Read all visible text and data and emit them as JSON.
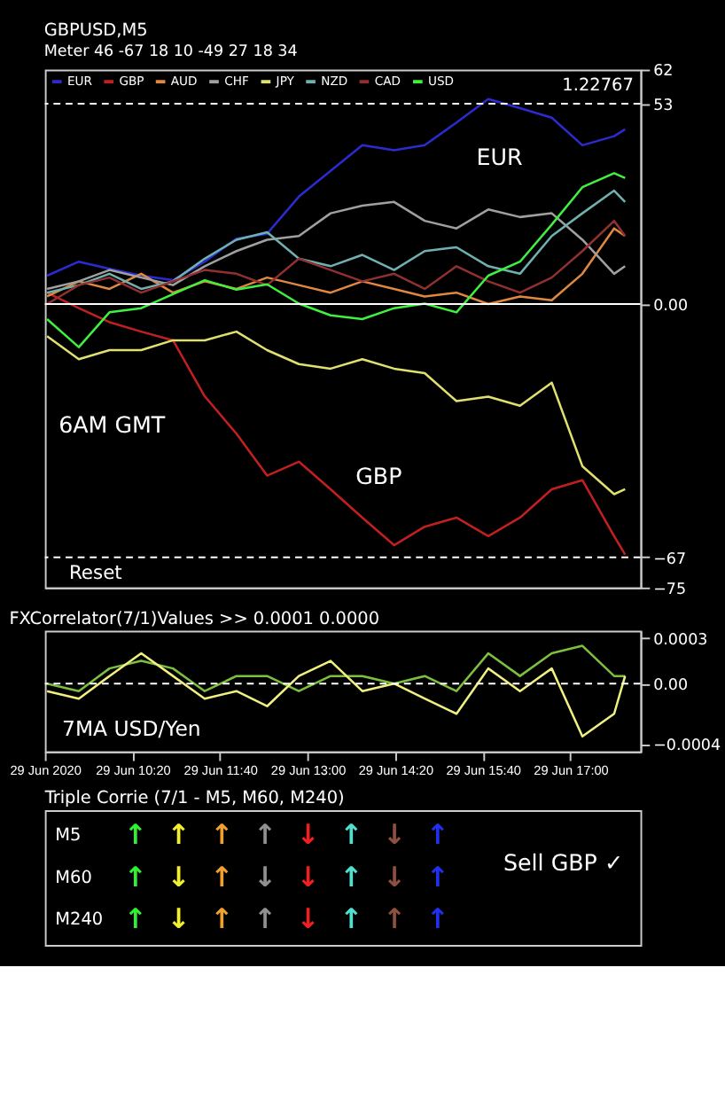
{
  "chart_data": [
    {
      "type": "line",
      "title": "GBPUSD,M5",
      "subtitle": "Meter 46 -67 18 10 -49 27 18 34",
      "legend": "top left",
      "tick_labels": "y",
      "marker": "none",
      "x": [
        "2020-06-29T09:02",
        "2020-06-29T09:31",
        "2020-06-29T09:59",
        "2020-06-29T10:28",
        "2020-06-29T10:57",
        "2020-06-29T11:26",
        "2020-06-29T11:55",
        "2020-06-29T12:23",
        "2020-06-29T12:52",
        "2020-06-29T13:21",
        "2020-06-29T13:50",
        "2020-06-29T14:19",
        "2020-06-29T14:47",
        "2020-06-29T15:16",
        "2020-06-29T15:45",
        "2020-06-29T16:14",
        "2020-06-29T16:43",
        "2020-06-29T17:11",
        "2020-06-29T17:40",
        "2020-06-29T17:50"
      ],
      "xlim": [
        "2020-06-29T09:00",
        "2020-06-29T18:04"
      ],
      "ylim": [
        -75,
        62
      ],
      "yticks": [
        62,
        53,
        {
          "value": 0,
          "label": "0.00"
        },
        -67,
        -75
      ],
      "series": [
        {
          "name": "EUR",
          "color": "#2b2bd0",
          "values": [
            7.5,
            11.2,
            9.3,
            7.5,
            6.3,
            11.2,
            17.3,
            18.6,
            28.4,
            35.2,
            42,
            40.7,
            42,
            48,
            54.2,
            51.8,
            49.3,
            42,
            44.4,
            46.2
          ]
        },
        {
          "name": "GBP",
          "color": "#c02020",
          "values": [
            3,
            -1.1,
            -4.8,
            -7.3,
            -9.6,
            -24.4,
            -34.3,
            -45.4,
            -41.7,
            -49,
            -56.5,
            -63.8,
            -58.9,
            -56.5,
            -61.4,
            -56.5,
            -49,
            -46.6,
            -61.4,
            -66.3
          ]
        },
        {
          "name": "AUD",
          "color": "#e08840",
          "values": [
            2,
            6,
            4,
            8,
            3,
            6,
            4,
            7,
            5,
            3,
            6,
            4,
            2,
            3,
            0,
            2,
            1,
            8,
            20,
            18
          ]
        },
        {
          "name": "CHF",
          "color": "#a0a0a0",
          "values": [
            4,
            6,
            9,
            7,
            5,
            10,
            14,
            17,
            18,
            24,
            26,
            27,
            22,
            20,
            25,
            23,
            24,
            17,
            8,
            10
          ]
        },
        {
          "name": "JPY",
          "color": "#e0e070",
          "values": [
            -8.5,
            -14.6,
            -12.2,
            -12.2,
            -9.6,
            -9.6,
            -7.3,
            -12.2,
            -15.9,
            -17.1,
            -14.6,
            -17.1,
            -18.3,
            -25.7,
            -24.5,
            -26.9,
            -20.8,
            -42.9,
            -50.3,
            -49
          ]
        },
        {
          "name": "NZD",
          "color": "#70b0b0",
          "values": [
            3,
            5,
            8,
            4,
            6,
            12,
            17,
            19,
            12,
            10,
            13,
            9,
            14,
            15,
            10,
            8,
            18,
            24,
            30,
            27
          ]
        },
        {
          "name": "CAD",
          "color": "#903030",
          "values": [
            0,
            5,
            7,
            3,
            6,
            9,
            8,
            5,
            12,
            9,
            6,
            8,
            4,
            10,
            6,
            3,
            7,
            14,
            22,
            18
          ]
        },
        {
          "name": "USD",
          "color": "#40f040",
          "values": [
            -4,
            -11.4,
            -2.2,
            -1.1,
            2.6,
            6.3,
            3.8,
            5.2,
            0.1,
            -3,
            -4,
            -1.1,
            0.1,
            -2.2,
            7.5,
            11.2,
            21,
            30.9,
            34.6,
            33.3
          ]
        }
      ],
      "ref_lines": [
        {
          "axis": "y",
          "value": 53,
          "color": "#ffffff",
          "line_style": "dashed"
        },
        {
          "axis": "y",
          "value": 0,
          "color": "#ffffff",
          "line_style": "solid"
        },
        {
          "axis": "y",
          "value": -67,
          "color": "#ffffff",
          "line_style": "dashed"
        }
      ],
      "annotations": [
        "EUR",
        "GBP",
        "6AM GMT",
        "Reset",
        "1.22767"
      ]
    },
    {
      "type": "line",
      "title": "FXCorrelator(7/1)Values >> 0.0001 0.0000",
      "marker": "none",
      "xticks": [
        {
          "value": "2020-06-29T09:00",
          "label": "29 Jun 2020"
        },
        {
          "value": "2020-06-29T10:20",
          "label": "29 Jun 10:20"
        },
        {
          "value": "2020-06-29T11:40",
          "label": "29 Jun 11:40"
        },
        {
          "value": "2020-06-29T13:00",
          "label": "29 Jun 13:00"
        },
        {
          "value": "2020-06-29T14:20",
          "label": "29 Jun 14:20"
        },
        {
          "value": "2020-06-29T15:40",
          "label": "29 Jun 15:40"
        },
        {
          "value": "2020-06-29T17:00",
          "label": "29 Jun 17:00"
        }
      ],
      "x": [
        "2020-06-29T09:02",
        "2020-06-29T09:31",
        "2020-06-29T09:59",
        "2020-06-29T10:28",
        "2020-06-29T10:57",
        "2020-06-29T11:26",
        "2020-06-29T11:55",
        "2020-06-29T12:23",
        "2020-06-29T12:52",
        "2020-06-29T13:21",
        "2020-06-29T13:50",
        "2020-06-29T14:19",
        "2020-06-29T14:47",
        "2020-06-29T15:16",
        "2020-06-29T15:45",
        "2020-06-29T16:14",
        "2020-06-29T16:43",
        "2020-06-29T17:11",
        "2020-06-29T17:40",
        "2020-06-29T17:50"
      ],
      "xlim": [
        "2020-06-29T09:00",
        "2020-06-29T18:04"
      ],
      "ylim": [
        -0.00045,
        0.00035
      ],
      "yticks": [
        0.0003,
        {
          "value": 0,
          "label": "0.00"
        },
        -0.0004
      ],
      "series": [
        {
          "color": "#7cc040",
          "values": [
            0,
            -5e-05,
            0.0001,
            0.00015,
            0.0001,
            -5e-05,
            5e-05,
            5e-05,
            -5e-05,
            5e-05,
            5e-05,
            0,
            5e-05,
            -5e-05,
            0.0002,
            5e-05,
            0.0002,
            0.00025,
            5e-05,
            5e-05
          ]
        },
        {
          "color": "#f0f080",
          "values": [
            -5e-05,
            -0.0001,
            5e-05,
            0.0002,
            5e-05,
            -0.0001,
            -5e-05,
            -0.00015,
            5e-05,
            0.00015,
            -5e-05,
            0,
            -0.0001,
            -0.0002,
            0.0001,
            -5e-05,
            0.0001,
            -0.00035,
            -0.0002,
            5e-05
          ]
        }
      ],
      "ref_lines": [
        {
          "axis": "y",
          "value": 0,
          "color": "#ffffff",
          "line_style": "dashed"
        }
      ],
      "annotations": [
        "7MA USD/Yen"
      ]
    },
    {
      "type": "other",
      "title": "Triple Corrie (7/1 - M5, M60, M240)",
      "y_categories": [
        "M5",
        "M60",
        "M240"
      ],
      "colors": [
        "#30f030",
        "#f0f030",
        "#f0a030",
        "#909090",
        "#f02020",
        "#50e0d0",
        "#905040",
        "#2030f0"
      ],
      "cell_labels": [
        [
          "↑",
          "↑",
          "↑",
          "↑",
          "↓",
          "↑",
          "↓",
          "↑"
        ],
        [
          "↑",
          "↓",
          "↑",
          "↓",
          "↓",
          "↑",
          "↓",
          "↑"
        ],
        [
          "↑",
          "↓",
          "↑",
          "↑",
          "↓",
          "↑",
          "↑",
          "↑"
        ]
      ],
      "annotations": [
        "Sell GBP ✓"
      ]
    }
  ]
}
